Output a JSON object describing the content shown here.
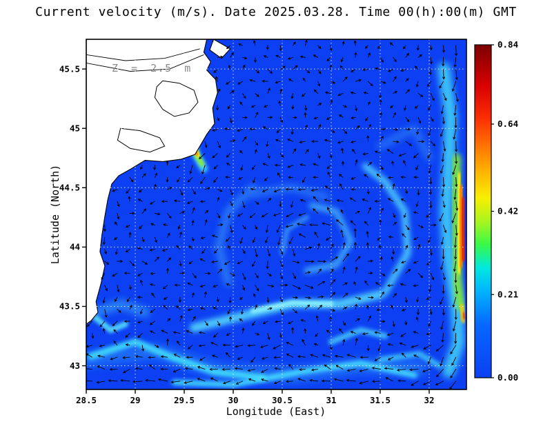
{
  "title": "Current velocity (m/s). Date 2025.03.28. Time 00(h):00(m) GMT",
  "annotation": "Z = 2.5 m",
  "axes": {
    "x_label": "Longitude (East)",
    "y_label": "Latitude (North)",
    "x_ticks": [
      28.5,
      29,
      29.5,
      30,
      30.5,
      31,
      31.5,
      32
    ],
    "x_tick_labels": [
      "28.5",
      "29",
      "29.5",
      "30",
      "30.5",
      "31",
      "31.5",
      "32"
    ],
    "y_ticks": [
      43,
      43.5,
      44,
      44.5,
      45,
      45.5
    ],
    "y_tick_labels": [
      "43",
      "43.5",
      "44",
      "44.5",
      "45",
      "45.5"
    ]
  },
  "colorbar": {
    "min": 0,
    "max": 0.84,
    "tick_values": [
      0.84,
      0.64,
      0.42,
      0.21,
      0
    ],
    "tick_labels": [
      "0.84",
      "0.64",
      "0.42",
      "0.21",
      "0.00"
    ]
  },
  "chart_data": {
    "type": "heatmap",
    "subtype": "velocity-magnitude-with-quiver",
    "title": "Current velocity (m/s). Date 2025.03.28. Time 00(h):00(m) GMT",
    "xlabel": "Longitude (East)",
    "ylabel": "Latitude (North)",
    "units": "m/s",
    "depth_m": 2.5,
    "date": "2025.03.28",
    "time": "00(h):00(m) GMT",
    "xlim": [
      28.5,
      32.38
    ],
    "ylim": [
      42.8,
      45.75
    ],
    "vmin": 0,
    "vmax": 0.84,
    "grid": true,
    "colormap": "jet",
    "sea_color": "#0c40f2",
    "colormap_stops": [
      {
        "o": 0.0,
        "c": "#0c40f2"
      },
      {
        "o": 0.16,
        "c": "#0668ff"
      },
      {
        "o": 0.26,
        "c": "#00b4ff"
      },
      {
        "o": 0.33,
        "c": "#00e8e0"
      },
      {
        "o": 0.4,
        "c": "#38f948"
      },
      {
        "o": 0.47,
        "c": "#aaf41f"
      },
      {
        "o": 0.54,
        "c": "#f8ef00"
      },
      {
        "o": 0.62,
        "c": "#ffb300"
      },
      {
        "o": 0.7,
        "c": "#ff7100"
      },
      {
        "o": 0.78,
        "c": "#fb2e00"
      },
      {
        "o": 0.88,
        "c": "#d60000"
      },
      {
        "o": 1.0,
        "c": "#7d0000"
      }
    ],
    "land": [
      [
        [
          29.73,
          45.75
        ],
        [
          29.7,
          45.64
        ],
        [
          29.77,
          45.56
        ],
        [
          29.73,
          45.49
        ],
        [
          29.82,
          45.41
        ],
        [
          29.84,
          45.3
        ],
        [
          29.79,
          45.17
        ],
        [
          29.81,
          45.04
        ],
        [
          29.73,
          44.95
        ],
        [
          29.66,
          44.85
        ],
        [
          29.61,
          44.78
        ],
        [
          29.47,
          44.74
        ],
        [
          29.28,
          44.72
        ],
        [
          29.1,
          44.73
        ],
        [
          28.96,
          44.66
        ],
        [
          28.83,
          44.6
        ],
        [
          28.76,
          44.53
        ],
        [
          28.72,
          44.4
        ],
        [
          28.69,
          44.26
        ],
        [
          28.66,
          44.1
        ],
        [
          28.64,
          43.96
        ],
        [
          28.69,
          43.84
        ],
        [
          28.65,
          43.69
        ],
        [
          28.6,
          43.54
        ],
        [
          28.62,
          43.45
        ],
        [
          28.55,
          43.38
        ],
        [
          28.5,
          43.35
        ],
        [
          28.5,
          45.75
        ]
      ],
      [
        [
          29.8,
          45.75
        ],
        [
          29.97,
          45.67
        ],
        [
          29.88,
          45.59
        ],
        [
          29.76,
          45.66
        ]
      ]
    ],
    "lakes": [
      [
        [
          29.28,
          45.4
        ],
        [
          29.45,
          45.38
        ],
        [
          29.6,
          45.32
        ],
        [
          29.64,
          45.22
        ],
        [
          29.55,
          45.13
        ],
        [
          29.4,
          45.1
        ],
        [
          29.28,
          45.16
        ],
        [
          29.2,
          45.26
        ],
        [
          29.22,
          45.35
        ]
      ],
      [
        [
          28.85,
          45.0
        ],
        [
          29.05,
          44.98
        ],
        [
          29.25,
          44.92
        ],
        [
          29.3,
          44.85
        ],
        [
          29.15,
          44.8
        ],
        [
          28.95,
          44.83
        ],
        [
          28.82,
          44.9
        ]
      ]
    ],
    "rivers": [
      [
        [
          28.5,
          45.55
        ],
        [
          28.95,
          45.48
        ],
        [
          29.35,
          45.5
        ],
        [
          29.7,
          45.62
        ]
      ],
      [
        [
          28.5,
          45.62
        ],
        [
          28.9,
          45.57
        ],
        [
          29.3,
          45.59
        ],
        [
          29.66,
          45.67
        ]
      ]
    ],
    "features": [
      {
        "pts": [
          [
            28.5,
            43.42
          ],
          [
            28.85,
            43.52
          ],
          [
            29.1,
            43.45
          ]
        ],
        "w": 0.1,
        "c": "#2f86f8",
        "blur": 5,
        "o": 0.9
      },
      {
        "pts": [
          [
            28.5,
            43.05
          ],
          [
            29.2,
            43.12
          ],
          [
            29.9,
            42.95
          ],
          [
            30.6,
            42.92
          ],
          [
            31.3,
            43.0
          ],
          [
            31.9,
            42.98
          ]
        ],
        "w": 0.16,
        "c": "#1e6cf7",
        "blur": 6,
        "o": 1
      },
      {
        "pts": [
          [
            28.55,
            43.08
          ],
          [
            29.0,
            43.2
          ],
          [
            29.35,
            43.08
          ],
          [
            29.8,
            42.95
          ],
          [
            30.3,
            42.9
          ]
        ],
        "w": 0.07,
        "c": "#3fd8fc",
        "blur": 3,
        "o": 0.95
      },
      {
        "pts": [
          [
            29.4,
            42.86
          ],
          [
            30.0,
            42.84
          ],
          [
            30.7,
            42.95
          ],
          [
            31.3,
            43.02
          ],
          [
            31.85,
            42.92
          ]
        ],
        "w": 0.06,
        "c": "#49e4ff",
        "blur": 3,
        "o": 0.85
      },
      {
        "pts": [
          [
            29.6,
            43.32
          ],
          [
            30.1,
            43.42
          ],
          [
            30.6,
            43.52
          ],
          [
            31.1,
            43.52
          ],
          [
            31.5,
            43.6
          ]
        ],
        "w": 0.09,
        "c": "#55d9fb",
        "blur": 4,
        "o": 0.9
      },
      {
        "pts": [
          [
            30.2,
            43.46
          ],
          [
            30.6,
            43.53
          ],
          [
            31.0,
            43.52
          ]
        ],
        "w": 0.05,
        "c": "#8df2ff",
        "blur": 2,
        "o": 0.9
      },
      {
        "pts": [
          [
            29.95,
            43.7
          ],
          [
            29.85,
            44.0
          ],
          [
            29.95,
            44.3
          ],
          [
            30.2,
            44.5
          ]
        ],
        "w": 0.08,
        "c": "#2f7ef6",
        "blur": 5,
        "o": 0.9
      },
      {
        "pts": [
          [
            30.2,
            44.45
          ],
          [
            30.6,
            44.5
          ],
          [
            30.95,
            44.42
          ]
        ],
        "w": 0.07,
        "c": "#2f7ef6",
        "blur": 5,
        "o": 0.85
      },
      {
        "pts": [
          [
            30.75,
            43.8
          ],
          [
            31.05,
            43.85
          ],
          [
            31.2,
            44.05
          ],
          [
            31.05,
            44.3
          ],
          [
            30.8,
            44.35
          ]
        ],
        "w": 0.06,
        "c": "#45b4f8",
        "blur": 4,
        "o": 0.9
      },
      {
        "pts": [
          [
            30.5,
            43.95
          ],
          [
            30.55,
            44.15
          ],
          [
            30.75,
            44.25
          ]
        ],
        "w": 0.05,
        "c": "#3f9df6",
        "blur": 3,
        "o": 0.8
      },
      {
        "pts": [
          [
            31.55,
            43.62
          ],
          [
            31.78,
            43.95
          ],
          [
            31.75,
            44.3
          ],
          [
            31.55,
            44.55
          ],
          [
            31.35,
            44.68
          ]
        ],
        "w": 0.07,
        "c": "#52d0fa",
        "blur": 4,
        "o": 0.9
      },
      {
        "pts": [
          [
            31.5,
            44.85
          ],
          [
            31.85,
            45.0
          ],
          [
            32.0,
            44.75
          ]
        ],
        "w": 0.07,
        "c": "#2a74f5",
        "blur": 5,
        "o": 0.9
      },
      {
        "pts": [
          [
            31.0,
            43.2
          ],
          [
            31.3,
            43.3
          ],
          [
            31.55,
            43.25
          ]
        ],
        "w": 0.06,
        "c": "#49cdf9",
        "blur": 3,
        "o": 0.85
      },
      {
        "pts": [
          [
            31.5,
            43.05
          ],
          [
            31.9,
            43.1
          ],
          [
            32.1,
            43.0
          ]
        ],
        "w": 0.06,
        "c": "#3fc8f8",
        "blur": 3,
        "o": 0.85
      },
      {
        "pts": [
          [
            28.6,
            43.4
          ],
          [
            28.75,
            43.3
          ],
          [
            28.9,
            43.35
          ]
        ],
        "w": 0.06,
        "c": "#55dcfc",
        "blur": 2.5,
        "o": 0.9
      },
      {
        "pts": [
          [
            32.15,
            45.5
          ],
          [
            32.22,
            45.1
          ],
          [
            32.2,
            44.7
          ],
          [
            32.17,
            44.3
          ],
          [
            32.2,
            43.9
          ],
          [
            32.28,
            43.5
          ],
          [
            32.3,
            43.2
          ],
          [
            32.2,
            42.95
          ]
        ],
        "w": 0.13,
        "c": "#3fc8f8",
        "blur": 5,
        "o": 0.95
      },
      {
        "pts": [
          [
            32.28,
            44.75
          ],
          [
            32.27,
            44.3
          ],
          [
            32.29,
            43.7
          ],
          [
            32.32,
            43.5
          ]
        ],
        "w": 0.09,
        "c": "#7fe83a",
        "blur": 4,
        "o": 0.95
      },
      {
        "pts": [
          [
            32.31,
            44.6
          ],
          [
            32.3,
            44.2
          ],
          [
            32.31,
            43.8
          ]
        ],
        "w": 0.075,
        "c": "#f6ef0a",
        "blur": 3,
        "o": 0.95
      },
      {
        "pts": [
          [
            32.33,
            44.5
          ],
          [
            32.32,
            44.15
          ],
          [
            32.33,
            43.85
          ]
        ],
        "w": 0.06,
        "c": "#ff8400",
        "blur": 2.5,
        "o": 1
      },
      {
        "pts": [
          [
            32.34,
            44.4
          ],
          [
            32.34,
            44.1
          ],
          [
            32.35,
            43.9
          ]
        ],
        "w": 0.05,
        "c": "#f32500",
        "blur": 2,
        "o": 1
      },
      {
        "pts": [
          [
            32.36,
            44.3
          ],
          [
            32.36,
            44.12
          ]
        ],
        "w": 0.04,
        "c": "#9b0000",
        "blur": 1.5,
        "o": 1
      },
      {
        "pts": [
          [
            32.33,
            43.5
          ],
          [
            32.35,
            43.38
          ]
        ],
        "w": 0.05,
        "c": "#ffd000",
        "blur": 2,
        "o": 0.9
      },
      {
        "pts": [
          [
            32.35,
            43.44
          ],
          [
            32.36,
            43.4
          ]
        ],
        "w": 0.03,
        "c": "#f33000",
        "blur": 1.5,
        "o": 0.9
      },
      {
        "pts": [
          [
            29.58,
            44.9
          ],
          [
            29.62,
            44.78
          ],
          [
            29.7,
            44.66
          ]
        ],
        "w": 0.08,
        "c": "#49d6fa",
        "blur": 3,
        "o": 0.95
      },
      {
        "pts": [
          [
            29.6,
            44.85
          ],
          [
            29.63,
            44.77
          ],
          [
            29.68,
            44.7
          ]
        ],
        "w": 0.05,
        "c": "#8fef2f",
        "blur": 2,
        "o": 0.95
      },
      {
        "pts": [
          [
            29.61,
            44.83
          ],
          [
            29.64,
            44.77
          ]
        ],
        "w": 0.035,
        "c": "#ffe400",
        "blur": 1.5,
        "o": 1
      },
      {
        "pts": [
          [
            29.62,
            44.8
          ],
          [
            29.63,
            44.78
          ]
        ],
        "w": 0.025,
        "c": "#ff7a00",
        "blur": 1,
        "o": 1
      }
    ],
    "vortices": [
      {
        "lon": 30.72,
        "lat": 44.0,
        "s": 0.85,
        "r": 0.62
      },
      {
        "lon": 31.05,
        "lat": 44.05,
        "s": 0.5,
        "r": 0.28
      },
      {
        "lon": 29.87,
        "lat": 44.17,
        "s": -0.45,
        "r": 0.3
      },
      {
        "lon": 31.72,
        "lat": 44.85,
        "s": -0.4,
        "r": 0.33
      },
      {
        "lon": 30.55,
        "lat": 43.08,
        "s": 0.45,
        "r": 0.3
      },
      {
        "lon": 29.2,
        "lat": 43.35,
        "s": 0.4,
        "r": 0.3
      },
      {
        "lon": 31.3,
        "lat": 43.15,
        "s": -0.35,
        "r": 0.28
      }
    ],
    "jets": [
      {
        "axis": "lon",
        "center": 32.38,
        "sigma": 0.22,
        "u": -0.1,
        "v": -1.7
      },
      {
        "axis": "lat",
        "center": 42.8,
        "sigma": 0.3,
        "u": -1.0,
        "v": 0.05
      },
      {
        "axis": "lon",
        "center": 28.58,
        "sigma": 0.16,
        "u": 0.05,
        "v": -0.7,
        "latmin": 43.3,
        "latmax": 44.75
      },
      {
        "axis": "point",
        "lon": 29.68,
        "lat": 44.7,
        "sigma": 0.16,
        "u": -0.5,
        "v": -0.9
      }
    ],
    "quiver": {
      "dlon": 0.128,
      "dlat": 0.101,
      "base_len": 5,
      "scale": 6.5
    }
  }
}
